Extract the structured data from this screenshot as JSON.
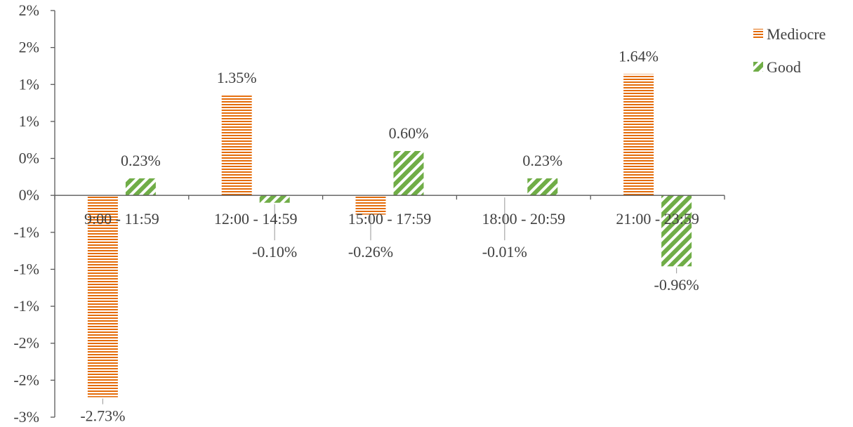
{
  "chart_data": {
    "type": "bar",
    "categories": [
      "9:00 - 11:59",
      "12:00 - 14:59",
      "15:00 - 17:59",
      "18:00 - 20:59",
      "21:00 - 23:59"
    ],
    "series": [
      {
        "name": "Mediocre",
        "values": [
          -2.73,
          1.35,
          -0.26,
          -0.01,
          1.64
        ],
        "labels": [
          "-2.73%",
          "1.35%",
          "-0.26%",
          "-0.01%",
          "1.64%"
        ],
        "color": "#E46C0A",
        "pattern": "horizontal-stripes"
      },
      {
        "name": "Good",
        "values": [
          0.23,
          -0.1,
          0.6,
          0.23,
          -0.96
        ],
        "labels": [
          "0.23%",
          "-0.10%",
          "0.60%",
          "0.23%",
          "-0.96%"
        ],
        "color": "#70AD47",
        "pattern": "diagonal-stripes"
      }
    ],
    "y_tick_values": [
      2.5,
      2.0,
      1.5,
      1.0,
      0.5,
      0.0,
      -0.5,
      -1.0,
      -1.5,
      -2.0,
      -2.5,
      -3.0
    ],
    "y_tick_labels": [
      "2%",
      "2%",
      "1%",
      "1%",
      "0%",
      "0%",
      "-1%",
      "-1%",
      "-1%",
      "-2%",
      "-2%",
      "-3%"
    ],
    "ylim": [
      -3.0,
      2.5
    ],
    "title": "",
    "xlabel": "",
    "ylabel": "",
    "grid": false,
    "legend": "right"
  }
}
